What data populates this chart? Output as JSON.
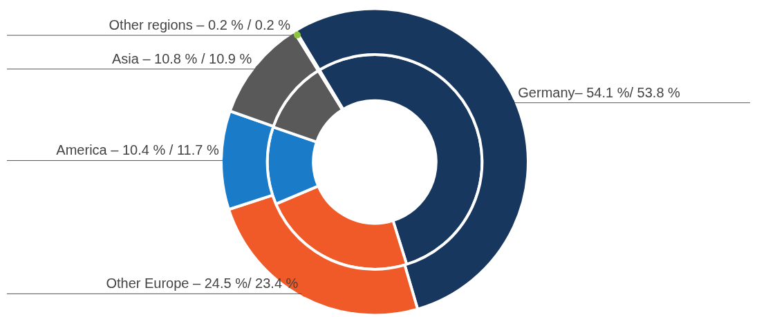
{
  "chart_data": {
    "type": "donut",
    "categories": [
      "Germany– 54.1 %/ 53.8 %",
      "Other Europe – 24.5 %/ 23.4 %",
      "America – 10.4 % / 11.7 %",
      "Asia – 10.8 % / 10.9 %",
      "Other regions – 0.2 % / 0.2 %"
    ],
    "colors": [
      "#17375e",
      "#f05a28",
      "#1a7cc8",
      "#595959",
      "#8cc63f"
    ],
    "series": [
      {
        "values": [
          54.1,
          24.5,
          10.4,
          10.8,
          0.2
        ]
      },
      {
        "values": [
          53.8,
          23.4,
          11.7,
          10.9,
          0.2
        ]
      }
    ],
    "legend": false
  }
}
